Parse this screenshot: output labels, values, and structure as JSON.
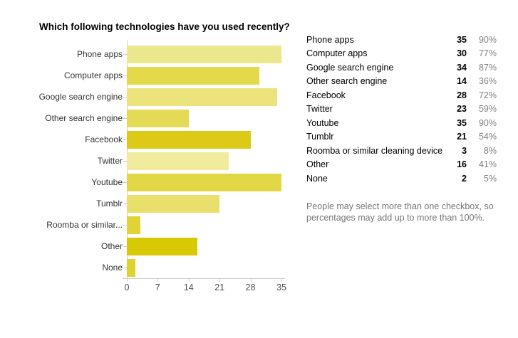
{
  "title": "Which following technologies have you used recently?",
  "chart_data": {
    "type": "bar",
    "orientation": "horizontal",
    "title": "Which following technologies have you used recently?",
    "categories": [
      "Phone apps",
      "Computer apps",
      "Google search engine",
      "Other search engine",
      "Facebook",
      "Twitter",
      "Youtube",
      "Tumblr",
      "Roomba or similar...",
      "Other",
      "None"
    ],
    "values": [
      35,
      30,
      34,
      14,
      28,
      23,
      35,
      21,
      3,
      16,
      2
    ],
    "bar_colors": [
      "#ebe78c",
      "#e3d94b",
      "#ece37c",
      "#e4da55",
      "#ddca16",
      "#f0eb9d",
      "#e2d845",
      "#e9e06c",
      "#e0d335",
      "#d8c905",
      "#dfd22e"
    ],
    "xlabel": "",
    "ylabel": "",
    "xlim": [
      0,
      35
    ],
    "x_ticks": [
      0,
      7,
      14,
      21,
      28,
      35
    ],
    "grid": false,
    "legend": "none",
    "axis_color": "#cccccc",
    "tick_label_color": "#4d4d4d"
  },
  "summary_table": {
    "rows": [
      {
        "label": "Phone apps",
        "count": "35",
        "percent": "90%"
      },
      {
        "label": "Computer apps",
        "count": "30",
        "percent": "77%"
      },
      {
        "label": "Google search engine",
        "count": "34",
        "percent": "87%"
      },
      {
        "label": "Other search engine",
        "count": "14",
        "percent": "36%"
      },
      {
        "label": "Facebook",
        "count": "28",
        "percent": "72%"
      },
      {
        "label": "Twitter",
        "count": "23",
        "percent": "59%"
      },
      {
        "label": "Youtube",
        "count": "35",
        "percent": "90%"
      },
      {
        "label": "Tumblr",
        "count": "21",
        "percent": "54%"
      },
      {
        "label": "Roomba or similar cleaning device",
        "count": "3",
        "percent": "8%"
      },
      {
        "label": "Other",
        "count": "16",
        "percent": "41%"
      },
      {
        "label": "None",
        "count": "2",
        "percent": "5%"
      }
    ]
  },
  "footnote": "People may select more than one checkbox, so percentages may add up to more than 100%."
}
